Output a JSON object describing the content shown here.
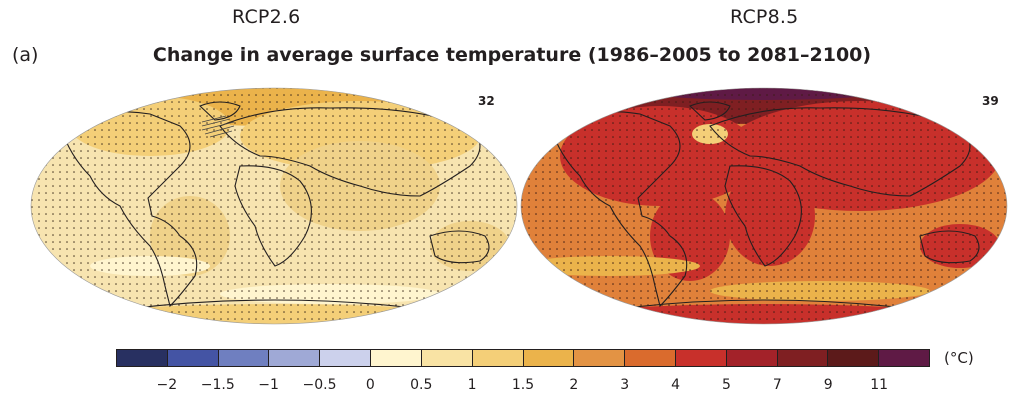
{
  "panel_label": "(a)",
  "title": "Change in average surface temperature (1986–2005 to 2081–2100)",
  "maps": [
    {
      "scenario": "RCP2.6",
      "model_count": "32",
      "base_color": "#f3d99a"
    },
    {
      "scenario": "RCP8.5",
      "model_count": "39",
      "base_color": "#d9622a"
    }
  ],
  "colorbar": {
    "unit": "(°C)",
    "colors": [
      "#283061",
      "#4454a4",
      "#6f7fc0",
      "#9fa9d6",
      "#ccd1ec",
      "#fff5cf",
      "#f9e3a4",
      "#f4cf78",
      "#ebb34b",
      "#e39344",
      "#da6b2d",
      "#c8302b",
      "#a32229",
      "#7f1f22",
      "#5c1a1a",
      "#5f1a45"
    ],
    "ticks": [
      "−2",
      "−1.5",
      "−1",
      "−0.5",
      "0",
      "0.5",
      "1",
      "1.5",
      "2",
      "3",
      "4",
      "5",
      "7",
      "9",
      "11"
    ]
  }
}
